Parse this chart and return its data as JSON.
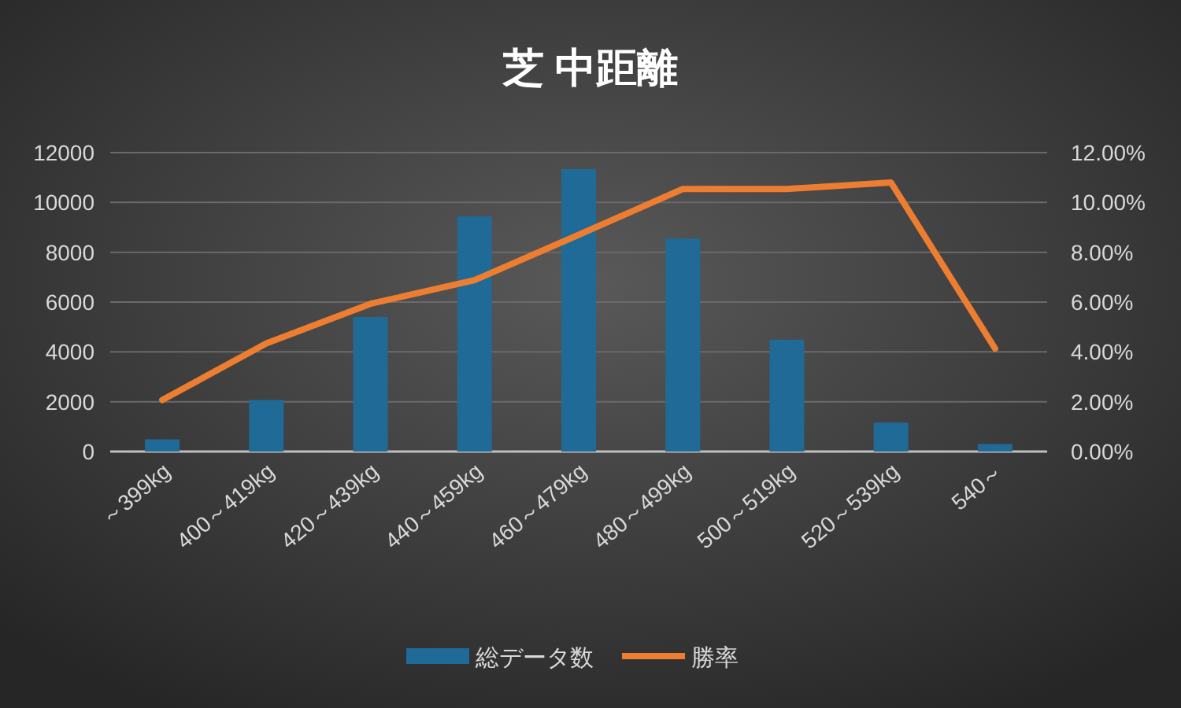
{
  "chart_data": {
    "type": "bar",
    "title": "芝 中距離",
    "categories": [
      "～399kg",
      "400～419kg",
      "420～439kg",
      "440～459kg",
      "460～479kg",
      "480～499kg",
      "500～519kg",
      "520～539kg",
      "540～"
    ],
    "series": [
      {
        "name": "総データ数",
        "color": "#1f6a96",
        "values": [
          490,
          2070,
          5400,
          9440,
          11340,
          8550,
          4490,
          1160,
          300
        ]
      },
      {
        "name": "勝率",
        "type": "line",
        "axis": "y2",
        "color": "#ed7d31",
        "values": [
          2.07,
          4.34,
          5.93,
          6.88,
          8.7,
          10.54,
          10.54,
          10.8,
          4.13
        ]
      }
    ],
    "ylim": [
      0,
      12000
    ],
    "yticks": [
      0,
      2000,
      4000,
      6000,
      8000,
      10000,
      12000
    ],
    "y2lim": [
      0,
      12
    ],
    "y2ticks": [
      {
        "value": 0,
        "label": "0.00%"
      },
      {
        "value": 2,
        "label": "2.00%"
      },
      {
        "value": 4,
        "label": "4.00%"
      },
      {
        "value": 6,
        "label": "6.00%"
      },
      {
        "value": 8,
        "label": "8.00%"
      },
      {
        "value": 10,
        "label": "10.00%"
      },
      {
        "value": 12,
        "label": "12.00%"
      }
    ],
    "grid": "y",
    "legend": "bottom",
    "marker": "none",
    "line_style": "solid"
  }
}
